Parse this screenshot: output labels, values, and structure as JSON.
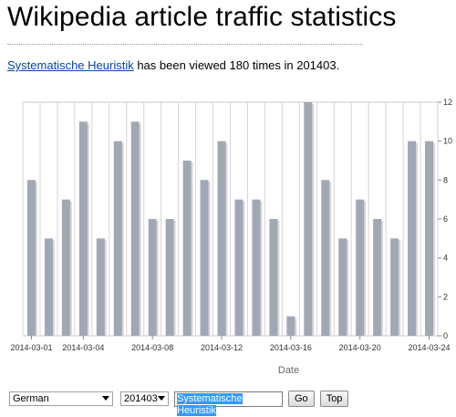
{
  "page": {
    "title": "Wikipedia article traffic statistics",
    "article_link": "Systematische Heuristik",
    "summary_text": " has been viewed 180 times in 201403."
  },
  "controls": {
    "language": "German",
    "month": "201403",
    "article_input": "Systematische Heuristik",
    "go_label": "Go",
    "top_label": "Top"
  },
  "chart_data": {
    "type": "bar",
    "xlabel": "Date",
    "ylabel": "",
    "ylim": [
      0,
      12
    ],
    "y_ticks": [
      0,
      2,
      4,
      6,
      8,
      10,
      12
    ],
    "x_ticks": [
      "2014-03-01",
      "2014-03-04",
      "2014-03-08",
      "2014-03-12",
      "2014-03-16",
      "2014-03-20",
      "2014-03-24"
    ],
    "categories": [
      "2014-03-01",
      "2014-03-02",
      "2014-03-03",
      "2014-03-04",
      "2014-03-05",
      "2014-03-06",
      "2014-03-07",
      "2014-03-08",
      "2014-03-09",
      "2014-03-10",
      "2014-03-11",
      "2014-03-12",
      "2014-03-13",
      "2014-03-14",
      "2014-03-15",
      "2014-03-16",
      "2014-03-17",
      "2014-03-18",
      "2014-03-19",
      "2014-03-20",
      "2014-03-21",
      "2014-03-22",
      "2014-03-23",
      "2014-03-24"
    ],
    "values": [
      8,
      5,
      7,
      11,
      5,
      10,
      11,
      6,
      6,
      9,
      8,
      10,
      7,
      7,
      6,
      1,
      12,
      8,
      5,
      7,
      6,
      5,
      10,
      10
    ],
    "bar_color": "#a0a8b4",
    "grid_color": "#d6d6d6"
  }
}
